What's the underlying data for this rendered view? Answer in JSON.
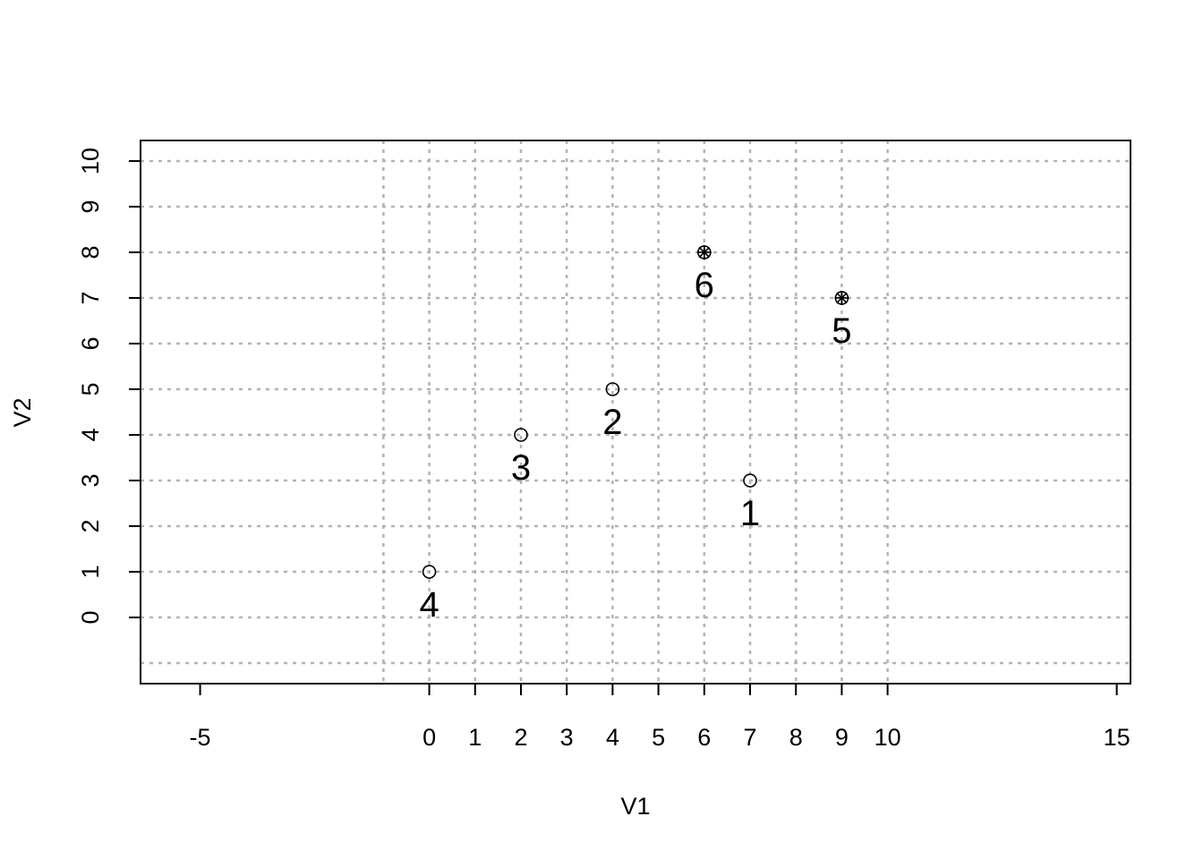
{
  "chart_data": {
    "type": "scatter",
    "xlabel": "V1",
    "ylabel": "V2",
    "xlim": [
      -6.3,
      15.3
    ],
    "ylim": [
      -1.45,
      10.45
    ],
    "x_ticks": [
      -5,
      0,
      1,
      2,
      3,
      4,
      5,
      6,
      7,
      8,
      9,
      10,
      15
    ],
    "y_ticks": [
      0,
      1,
      2,
      3,
      4,
      5,
      6,
      7,
      8,
      9,
      10
    ],
    "x_grid": [
      -1,
      0,
      1,
      2,
      3,
      4,
      5,
      6,
      7,
      8,
      9,
      10
    ],
    "y_grid": [
      -1,
      0,
      1,
      2,
      3,
      4,
      5,
      6,
      7,
      8,
      9,
      10
    ],
    "grid": true,
    "points": [
      {
        "label": "1",
        "x": 7,
        "y": 3,
        "marker": "circle"
      },
      {
        "label": "2",
        "x": 4,
        "y": 5,
        "marker": "circle"
      },
      {
        "label": "3",
        "x": 2,
        "y": 4,
        "marker": "circle"
      },
      {
        "label": "4",
        "x": 0,
        "y": 1,
        "marker": "circle"
      },
      {
        "label": "5",
        "x": 9,
        "y": 7,
        "marker": "circle-star"
      },
      {
        "label": "6",
        "x": 6,
        "y": 8,
        "marker": "circle-star"
      }
    ]
  }
}
